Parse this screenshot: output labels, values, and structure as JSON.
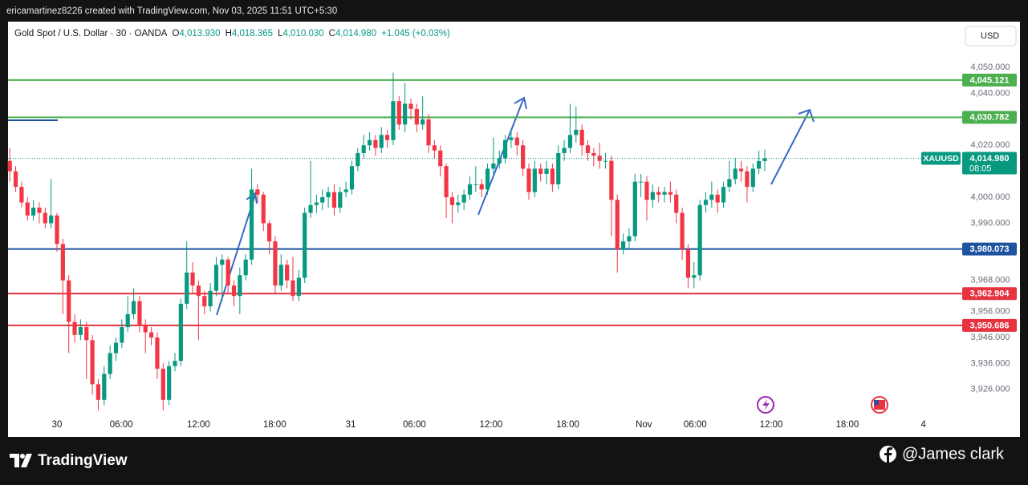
{
  "chart_data": {
    "type": "candlestick",
    "header": "ericamartinez8226 created with TradingView.com, Nov 03, 2025 11:51 UTC+5:30",
    "title": "Gold Spot / U.S. Dollar · 30 · OANDA",
    "ohlc_legend": [
      {
        "key": "O",
        "value": "4,013.930"
      },
      {
        "key": "H",
        "value": "4,018.365"
      },
      {
        "key": "L",
        "value": "4,010.030"
      },
      {
        "key": "C",
        "value": "4,014.980"
      }
    ],
    "change": "+1.045 (+0.03%)",
    "currency": "USD",
    "up_color": "#089981",
    "down_color": "#f23645",
    "open": [
      4014,
      4010,
      4004,
      3998,
      3993,
      3996,
      3994,
      3990,
      3993,
      3982,
      3968,
      3952,
      3947,
      3950,
      3945,
      3928,
      3922,
      3932,
      3940,
      3944,
      3950,
      3955,
      3960,
      3951,
      3948,
      3946,
      3934,
      3922,
      3935,
      3937,
      3959,
      3971,
      3966,
      3962,
      3958,
      3964,
      3974,
      3976,
      3966,
      3962,
      3970,
      3976,
      4003,
      4001,
      3990,
      3983,
      3966,
      3974,
      3968,
      3962,
      3969,
      3994,
      3997,
      3998,
      4000,
      4002,
      3996,
      4002,
      4003,
      4012,
      4017,
      4020,
      4022,
      4019,
      4024,
      4022,
      4037,
      4028,
      4036,
      4034,
      4028,
      4030,
      4020,
      4018,
      4012,
      4000,
      3997,
      3998,
      4001,
      4005,
      4005,
      4003,
      4011,
      4013,
      4015,
      4022,
      4023,
      4020,
      4011,
      4002,
      4011,
      4009,
      4011,
      4005,
      4017,
      4019,
      4024,
      4026,
      4020,
      4017,
      4016,
      4014,
      4014,
      3999,
      3980,
      3983,
      3985,
      4006,
      4006,
      3999,
      4002,
      4001,
      4002,
      4001,
      3994,
      3980,
      3969,
      3970,
      3997,
      3999,
      4001,
      3998,
      4004,
      4007,
      4011,
      4010,
      4004,
      4011,
      4013.93
    ],
    "high": [
      4019,
      4012,
      4006,
      4000,
      3999,
      3998,
      3996,
      4007,
      3994,
      3984,
      3970,
      3955,
      3953,
      3952,
      3947,
      3930,
      3935,
      3943,
      3946,
      3953,
      3962,
      3965,
      3962,
      3953,
      3950,
      3948,
      3936,
      3937,
      3940,
      3961,
      3983,
      3975,
      3968,
      3964,
      3967,
      3977,
      3978,
      3977,
      3968,
      3973,
      3978,
      4011,
      4005,
      4002,
      3991,
      3985,
      3978,
      3976,
      3977,
      3972,
      3996,
      4014,
      4001,
      4003,
      4004,
      4005,
      4004,
      4006,
      4014,
      4019,
      4024,
      4025,
      4024,
      4027,
      4026,
      4048,
      4039,
      4044,
      4038,
      4036,
      4039,
      4032,
      4022,
      4020,
      4013,
      4002,
      4001,
      4003,
      4008,
      4012,
      4007,
      4013,
      4023,
      4018,
      4024,
      4026,
      4025,
      4022,
      4013,
      4014,
      4013,
      4014,
      4013,
      4020,
      4022,
      4036,
      4035,
      4028,
      4022,
      4019,
      4021,
      4017,
      4016,
      4001,
      3986,
      3988,
      4009,
      4009,
      4008,
      4005,
      4004,
      4004,
      4006,
      4003,
      3996,
      3982,
      3975,
      3999,
      4002,
      4006,
      4003,
      4006,
      4014,
      4015,
      4014,
      4012,
      4013,
      4018,
      4018.365
    ],
    "low": [
      4006,
      4002,
      3996,
      3991,
      3991,
      3990,
      3988,
      3988,
      3979,
      3955,
      3940,
      3944,
      3945,
      3930,
      3924,
      3918,
      3920,
      3930,
      3937,
      3942,
      3948,
      3953,
      3948,
      3940,
      3943,
      3930,
      3918,
      3920,
      3933,
      3935,
      3957,
      3963,
      3945,
      3955,
      3956,
      3962,
      3960,
      3963,
      3958,
      3955,
      3968,
      3974,
      3998,
      3987,
      3978,
      3963,
      3964,
      3965,
      3960,
      3960,
      3967,
      3992,
      3994,
      3995,
      3996,
      3993,
      3994,
      4000,
      4001,
      4010,
      4015,
      4018,
      4016,
      4017,
      4019,
      4020,
      4026,
      4025,
      4030,
      4025,
      4026,
      4017,
      4015,
      4008,
      3992,
      3990,
      3994,
      3995,
      3999,
      4002,
      4000,
      4001,
      4008,
      4011,
      4013,
      4019,
      4016,
      4008,
      3999,
      4000,
      4006,
      4005,
      4002,
      4003,
      4014,
      4017,
      4021,
      4016,
      4014,
      4012,
      4011,
      4011,
      3985,
      3971,
      3978,
      3980,
      3983,
      4000,
      3991,
      3996,
      3998,
      3998,
      3998,
      3990,
      3976,
      3965,
      3965,
      3968,
      3994,
      3996,
      3994,
      3996,
      4002,
      4005,
      4006,
      3998,
      4002,
      4009,
      4010.03
    ],
    "close": [
      4010,
      4004,
      3998,
      3993,
      3996,
      3994,
      3990,
      3993,
      3982,
      3968,
      3952,
      3947,
      3950,
      3945,
      3928,
      3922,
      3932,
      3940,
      3944,
      3950,
      3955,
      3960,
      3951,
      3948,
      3946,
      3934,
      3922,
      3935,
      3937,
      3959,
      3971,
      3966,
      3962,
      3958,
      3964,
      3974,
      3976,
      3966,
      3962,
      3970,
      3976,
      4003,
      4001,
      3990,
      3983,
      3966,
      3974,
      3968,
      3962,
      3969,
      3994,
      3997,
      3998,
      4000,
      4002,
      3996,
      4002,
      4003,
      4012,
      4017,
      4020,
      4022,
      4019,
      4024,
      4022,
      4037,
      4028,
      4036,
      4034,
      4028,
      4030,
      4020,
      4018,
      4012,
      4000,
      3997,
      3998,
      4001,
      4005,
      4005,
      4003,
      4011,
      4013,
      4015,
      4022,
      4023,
      4020,
      4011,
      4002,
      4011,
      4009,
      4011,
      4005,
      4017,
      4019,
      4024,
      4026,
      4020,
      4017,
      4016,
      4014,
      4014,
      3999,
      3980,
      3983,
      3985,
      4006,
      4006,
      3999,
      4002,
      4001,
      4002,
      4001,
      3994,
      3980,
      3969,
      3970,
      3997,
      3999,
      4001,
      3998,
      4004,
      4007,
      4011,
      4010,
      4004,
      4011,
      4013.93,
      4014.98
    ],
    "xlim": [
      -0.3,
      161.2
    ],
    "xticks": [
      {
        "value": 8,
        "label": "30"
      },
      {
        "value": 18.9,
        "label": "06:00"
      },
      {
        "value": 32,
        "label": "12:00"
      },
      {
        "value": 44.9,
        "label": "18:00"
      },
      {
        "value": 57.8,
        "label": "31"
      },
      {
        "value": 68.6,
        "label": "06:00"
      },
      {
        "value": 81.6,
        "label": "12:00"
      },
      {
        "value": 94.6,
        "label": "18:00"
      },
      {
        "value": 107.5,
        "label": "Nov"
      },
      {
        "value": 116.2,
        "label": "06:00"
      },
      {
        "value": 129.1,
        "label": "12:00"
      },
      {
        "value": 142,
        "label": "18:00"
      },
      {
        "value": 154.9,
        "label": "4"
      }
    ],
    "ylim": [
      3917,
      4067.3
    ],
    "yticks": [
      {
        "value": 4050,
        "label": "4,050.000"
      },
      {
        "value": 4040,
        "label": "4,040.000"
      },
      {
        "value": 4020,
        "label": "4,020.000"
      },
      {
        "value": 4000,
        "label": "4,000.000"
      },
      {
        "value": 3990,
        "label": "3,990.000"
      },
      {
        "value": 3968,
        "label": "3,968.000"
      },
      {
        "value": 3956,
        "label": "3,956.000"
      },
      {
        "value": 3946,
        "label": "3,946.000"
      },
      {
        "value": 3936,
        "label": "3,936.000"
      },
      {
        "value": 3926,
        "label": "3,926.000"
      }
    ],
    "grid": false,
    "levels": [
      {
        "value": 4045.121,
        "label": "4,045.121",
        "color": "#4caf50"
      },
      {
        "value": 4030.782,
        "label": "4,030.782",
        "color": "#4caf50"
      },
      {
        "value": 3980.073,
        "label": "3,980.073",
        "color": "#1e53a0"
      },
      {
        "value": 3962.904,
        "label": "3,962.904",
        "color": "#e53340"
      },
      {
        "value": 3950.686,
        "label": "3,950.686",
        "color": "#e53340"
      }
    ],
    "current_price": {
      "symbol": "XAUUSD",
      "value": 4014.98,
      "label": "4,014.980",
      "countdown": "08:05",
      "color": "#089981"
    }
  },
  "footer": {
    "brand": "TradingView",
    "author": "@James clark"
  }
}
